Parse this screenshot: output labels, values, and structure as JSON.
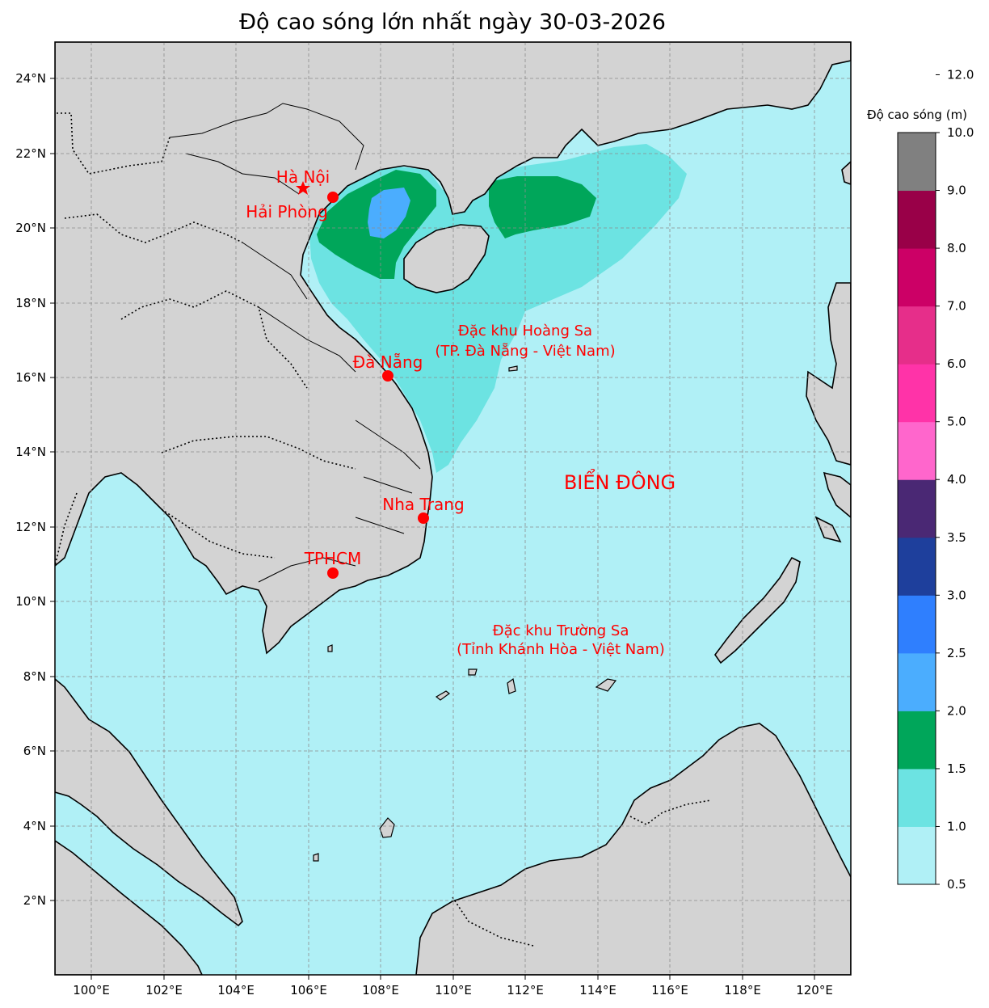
{
  "title": "Độ cao sóng lớn nhất ngày 30-03-2026",
  "x_ticks": [
    "100°E",
    "102°E",
    "104°E",
    "106°E",
    "108°E",
    "110°E",
    "112°E",
    "114°E",
    "116°E",
    "118°E",
    "120°E"
  ],
  "y_ticks": [
    "2°N",
    "4°N",
    "6°N",
    "8°N",
    "10°N",
    "12°N",
    "14°N",
    "16°N",
    "18°N",
    "20°N",
    "22°N",
    "24°N"
  ],
  "places": {
    "hanoi": "Hà Nội",
    "haiphong": "Hải Phòng",
    "danang": "Đà Nẵng",
    "nhatrang": "Nha Trang",
    "tphcm": "TPHCM",
    "hoangsa_line1": "Đặc khu Hoàng Sa",
    "hoangsa_line2": "(TP. Đà Nẵng - Việt Nam)",
    "truongsa_line1": "Đặc khu Trường Sa",
    "truongsa_line2": "(Tỉnh Khánh Hòa - Việt Nam)",
    "biendong": "BIỂN ĐÔNG"
  },
  "colorbar": {
    "title": "Độ cao sóng (m)",
    "levels": [
      "0.5",
      "1.0",
      "1.5",
      "2.0",
      "2.5",
      "3.0",
      "3.5",
      "4.0",
      "5.0",
      "6.0",
      "7.0",
      "8.0",
      "9.0",
      "10.0",
      "12.0"
    ],
    "colors": [
      "#b0f0f6",
      "#6ce3e2",
      "#00a65a",
      "#4badfe",
      "#2f7ffe",
      "#1e3f9c",
      "#4a2874",
      "#ff66cc",
      "#ff33a8",
      "#e62e8a",
      "#cc0066",
      "#990048",
      "#808080"
    ]
  },
  "map_colors": {
    "land": "#d3d3d3",
    "sea_0_5": "#b0f0f6",
    "sea_1_0": "#6ce3e2",
    "sea_1_5": "#00a65a",
    "sea_2_0": "#4badfe",
    "marker": "#ff0000"
  }
}
